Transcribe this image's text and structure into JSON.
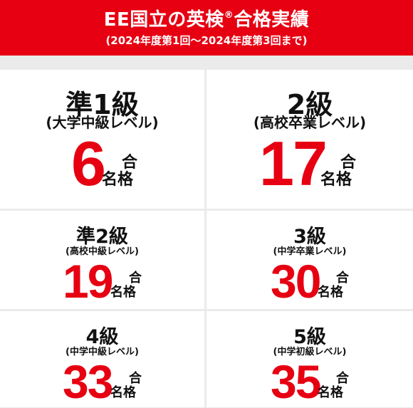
{
  "header": {
    "title_main": "EE国立の英検",
    "title_mark": "®",
    "title_end": "合格実績",
    "subtitle": "(2024年度第1回〜2024年度第3回まで)"
  },
  "results": {
    "pre1": {
      "grade": "準1級",
      "level": "(大学中級レベル)",
      "count": "6"
    },
    "g2": {
      "grade": "2級",
      "level": "(高校卒業レベル)",
      "count": "17"
    },
    "pre2": {
      "grade": "準2級",
      "level": "(高校中級レベル)",
      "count": "19"
    },
    "g3": {
      "grade": "3級",
      "level": "(中学卒業レベル)",
      "count": "30"
    },
    "g4": {
      "grade": "4級",
      "level": "(中学中級レベル)",
      "count": "33"
    },
    "g5": {
      "grade": "5級",
      "level": "(中学初級レベル)",
      "count": "35"
    }
  },
  "suffix": {
    "part1": "合",
    "part2": "名格"
  }
}
